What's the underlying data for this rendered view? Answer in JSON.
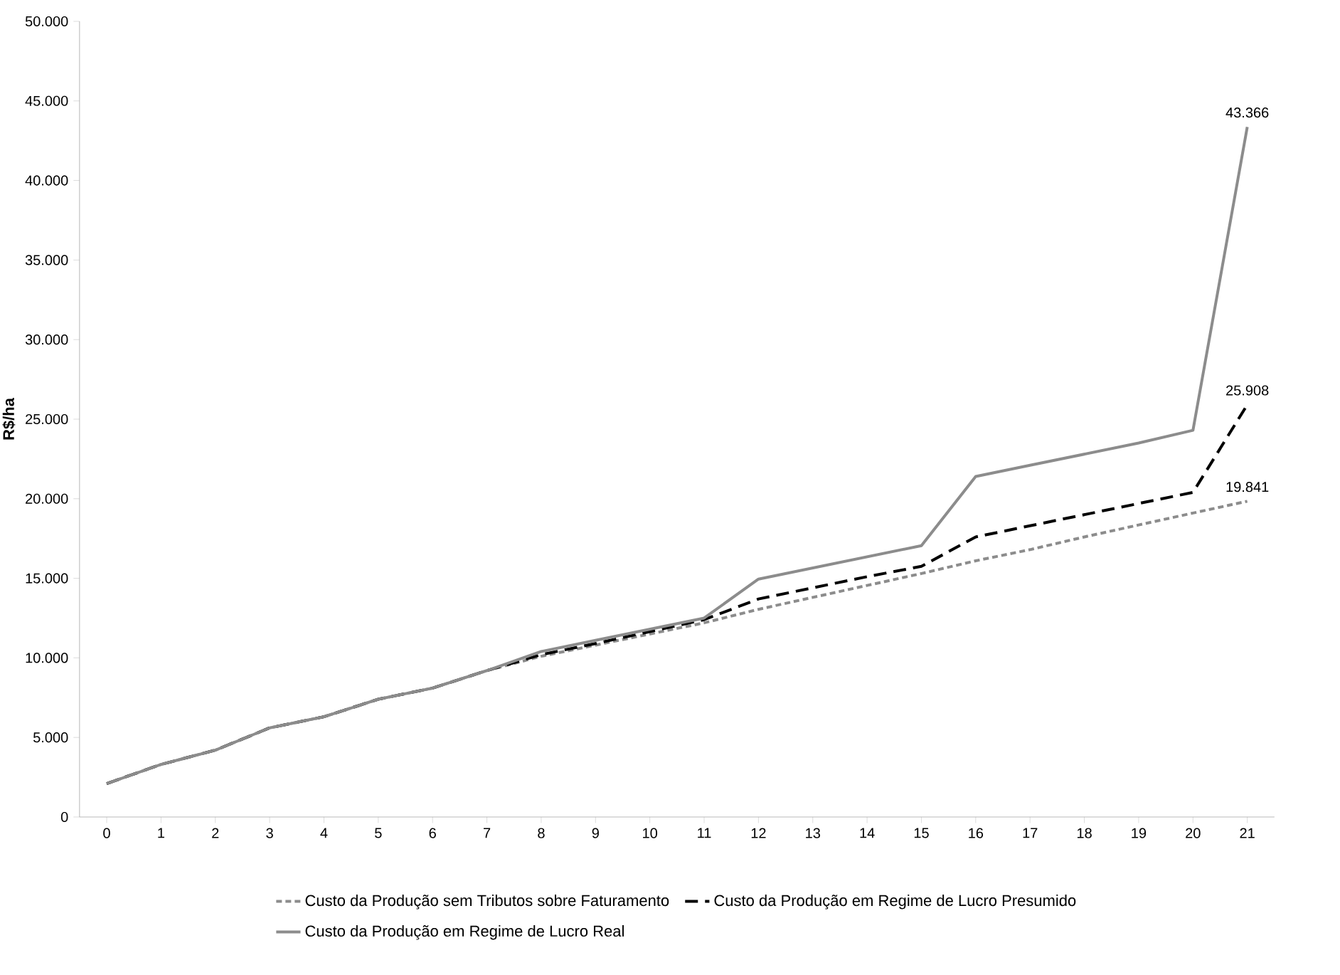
{
  "chart_data": {
    "type": "line",
    "ylabel": "R$/ha",
    "categories": [
      "0",
      "1",
      "2",
      "3",
      "4",
      "5",
      "6",
      "7",
      "8",
      "9",
      "10",
      "11",
      "12",
      "13",
      "14",
      "15",
      "16",
      "17",
      "18",
      "19",
      "20",
      "21"
    ],
    "ylim": [
      0,
      50000
    ],
    "yticks": [
      0,
      {
        "value": 5000,
        "label": "5.000"
      },
      {
        "value": 10000,
        "label": "10.000"
      },
      {
        "value": 15000,
        "label": "15.000"
      },
      {
        "value": 20000,
        "label": "20.000"
      },
      {
        "value": 25000,
        "label": "25.000"
      },
      {
        "value": 30000,
        "label": "30.000"
      },
      {
        "value": 35000,
        "label": "35.000"
      },
      {
        "value": 40000,
        "label": "40.000"
      },
      {
        "value": 45000,
        "label": "45.000"
      },
      {
        "value": 50000,
        "label": "50.000"
      }
    ],
    "grid": false,
    "legend": "bottom",
    "series": [
      {
        "name": "Custo da Produção sem Tributos sobre Faturamento",
        "color": "#8c8c8c",
        "line_style": "dotted",
        "values": [
          2100,
          3300,
          4200,
          5600,
          6300,
          7400,
          8100,
          9200,
          10100,
          10800,
          11500,
          12200,
          13050,
          13800,
          14550,
          15300,
          16100,
          16800,
          17600,
          18350,
          19100,
          19841
        ],
        "value_labels": [
          null,
          null,
          null,
          null,
          null,
          null,
          null,
          null,
          null,
          null,
          null,
          null,
          null,
          null,
          null,
          null,
          null,
          null,
          null,
          null,
          null,
          "19.841"
        ]
      },
      {
        "name": "Custo da Produção em Regime de Lucro Presumido",
        "color": "#000000",
        "line_style": "dashed",
        "values": [
          2100,
          3300,
          4200,
          5600,
          6300,
          7400,
          8100,
          9200,
          10200,
          10900,
          11650,
          12400,
          13700,
          14400,
          15100,
          15750,
          17600,
          18300,
          19000,
          19700,
          20400,
          25908
        ],
        "value_labels": [
          null,
          null,
          null,
          null,
          null,
          null,
          null,
          null,
          null,
          null,
          null,
          null,
          null,
          null,
          null,
          null,
          null,
          null,
          null,
          null,
          null,
          "25.908"
        ]
      },
      {
        "name": "Custo da Produção em Regime de Lucro Real",
        "color": "#8c8c8c",
        "line_style": "solid",
        "values": [
          2100,
          3300,
          4200,
          5600,
          6300,
          7400,
          8100,
          9200,
          10400,
          11100,
          11800,
          12500,
          14950,
          15650,
          16350,
          17050,
          21400,
          22100,
          22800,
          23500,
          24300,
          43366
        ],
        "value_labels": [
          null,
          null,
          null,
          null,
          null,
          null,
          null,
          null,
          null,
          null,
          null,
          null,
          null,
          null,
          null,
          null,
          null,
          null,
          null,
          null,
          null,
          "43.366"
        ]
      }
    ]
  }
}
